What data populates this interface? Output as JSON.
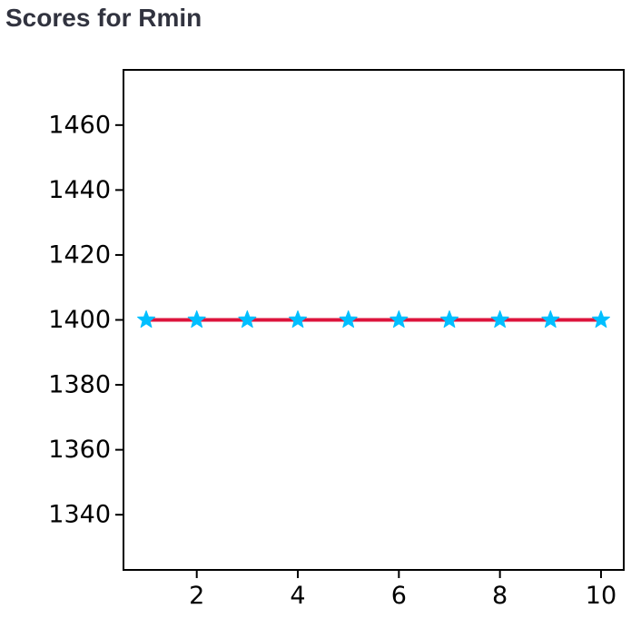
{
  "heading": "Scores for Rmin",
  "chart_data": {
    "type": "line",
    "title": "",
    "xlabel": "",
    "ylabel": "",
    "x": [
      1,
      2,
      3,
      4,
      5,
      6,
      7,
      8,
      9,
      10
    ],
    "series": [
      {
        "values": [
          1400,
          1400,
          1400,
          1400,
          1400,
          1400,
          1400,
          1400,
          1400,
          1400
        ],
        "line_color": "#dc143c",
        "marker": "star",
        "marker_color": "#00bfff"
      }
    ],
    "xlim": [
      0.55,
      10.45
    ],
    "ylim": [
      1323,
      1477
    ],
    "xticks": [
      2,
      4,
      6,
      8,
      10
    ],
    "yticks": [
      1340,
      1360,
      1380,
      1400,
      1420,
      1440,
      1460
    ],
    "xtick_labels": [
      "2",
      "4",
      "6",
      "8",
      "10"
    ],
    "ytick_labels": [
      "1340",
      "1360",
      "1380",
      "1400",
      "1420",
      "1440",
      "1460"
    ],
    "grid": false,
    "legend": "none"
  }
}
